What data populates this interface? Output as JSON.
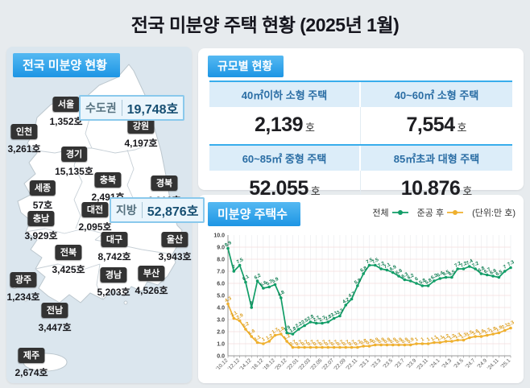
{
  "title": "전국 미분양 주택 현황 (2025년 1월)",
  "map_panel": {
    "header": "전국 미분양 현황",
    "callouts": [
      {
        "label": "수도권",
        "value": "19,748호"
      },
      {
        "label": "지방",
        "value": "52,876호"
      }
    ],
    "regions": [
      {
        "name": "서울",
        "value": "1,352호"
      },
      {
        "name": "인천",
        "value": "3,261호"
      },
      {
        "name": "강원",
        "value": "4,197호"
      },
      {
        "name": "경기",
        "value": "15,135호"
      },
      {
        "name": "충북",
        "value": "2,491호"
      },
      {
        "name": "세종",
        "value": "57호"
      },
      {
        "name": "경북",
        "value": "6,913호"
      },
      {
        "name": "대전",
        "value": "2,095호"
      },
      {
        "name": "충남",
        "value": "3,929호"
      },
      {
        "name": "대구",
        "value": "8,742호"
      },
      {
        "name": "울산",
        "value": "3,943호"
      },
      {
        "name": "전북",
        "value": "3,425호"
      },
      {
        "name": "경남",
        "value": "5,203호"
      },
      {
        "name": "부산",
        "value": "4,526호"
      },
      {
        "name": "광주",
        "value": "1,234호"
      },
      {
        "name": "전남",
        "value": "3,447호"
      },
      {
        "name": "제주",
        "value": "2,674호"
      }
    ]
  },
  "scale_panel": {
    "header": "규모별 현황",
    "cells": [
      {
        "label": "40㎡이하 소형 주택",
        "value": "2,139",
        "unit": "호"
      },
      {
        "label": "40~60㎡ 소형 주택",
        "value": "7,554",
        "unit": "호"
      },
      {
        "label": "60~85㎡ 중형 주택",
        "value": "52,055",
        "unit": "호"
      },
      {
        "label": "85㎡초과 대형 주택",
        "value": "10,876",
        "unit": "호"
      }
    ]
  },
  "chart_panel": {
    "header": "미분양 주택수",
    "legend": [
      {
        "label": "전체",
        "color": "#119d67"
      },
      {
        "label": "준공 후",
        "color": "#efb02e"
      }
    ],
    "unit_note": "(단위:만 호)"
  },
  "chart_data": {
    "type": "line",
    "title": "미분양 주택수",
    "unit": "만 호",
    "ylim": [
      0,
      10
    ],
    "ytick_step": 1,
    "grid": true,
    "legend_position": "top-right",
    "x_label_every": 2,
    "categories": [
      "'10.12",
      "'11.12",
      "'12.12",
      "'13.12",
      "'14.12",
      "'15.12",
      "'16.12",
      "'17.12",
      "'18.12",
      "'19.12",
      "'20.12",
      "'21.12",
      "'22.01",
      "'22.02",
      "'22.03",
      "'22.04",
      "'22.05",
      "'22.06",
      "'22.07",
      "'22.08",
      "'22.09",
      "'22.10",
      "'22.11",
      "'22.12",
      "'23.1",
      "'23.2",
      "'23.3",
      "'23.4",
      "'23.5",
      "'23.6",
      "'23.7",
      "'23.8",
      "'23.9",
      "'23.10",
      "'23.11",
      "'23.12",
      "'24.1",
      "'24.2",
      "'24.3",
      "'24.4",
      "'24.5",
      "'24.6",
      "'24.7",
      "'24.8",
      "'24.9",
      "'24.10",
      "'24.11",
      "'24.12",
      "'25.1"
    ],
    "series": [
      {
        "name": "전체",
        "color": "#119d67",
        "values": [
          8.9,
          7.0,
          7.5,
          6.1,
          4.0,
          6.2,
          5.6,
          5.7,
          5.9,
          4.8,
          1.9,
          1.8,
          2.2,
          2.5,
          2.8,
          2.7,
          2.7,
          2.8,
          3.1,
          3.3,
          4.2,
          4.7,
          5.8,
          6.8,
          7.5,
          7.5,
          7.2,
          7.1,
          6.9,
          6.6,
          6.3,
          6.2,
          6.0,
          5.8,
          5.8,
          6.2,
          6.4,
          6.5,
          6.5,
          7.2,
          7.2,
          7.4,
          7.2,
          6.8,
          6.7,
          6.6,
          6.5,
          7.0,
          7.3
        ]
      },
      {
        "name": "준공 후",
        "color": "#efb02e",
        "values": [
          4.3,
          3.1,
          2.9,
          2.2,
          1.6,
          1.1,
          1.0,
          1.2,
          1.7,
          1.8,
          1.2,
          0.7,
          0.7,
          0.7,
          0.7,
          0.7,
          0.7,
          0.7,
          0.7,
          0.7,
          0.7,
          0.7,
          0.7,
          0.8,
          0.8,
          0.9,
          0.9,
          0.9,
          0.9,
          0.9,
          0.9,
          0.9,
          1.0,
          1.0,
          1.0,
          1.1,
          1.1,
          1.2,
          1.2,
          1.3,
          1.3,
          1.5,
          1.6,
          1.6,
          1.7,
          1.8,
          1.9,
          2.1,
          2.3
        ]
      }
    ]
  }
}
